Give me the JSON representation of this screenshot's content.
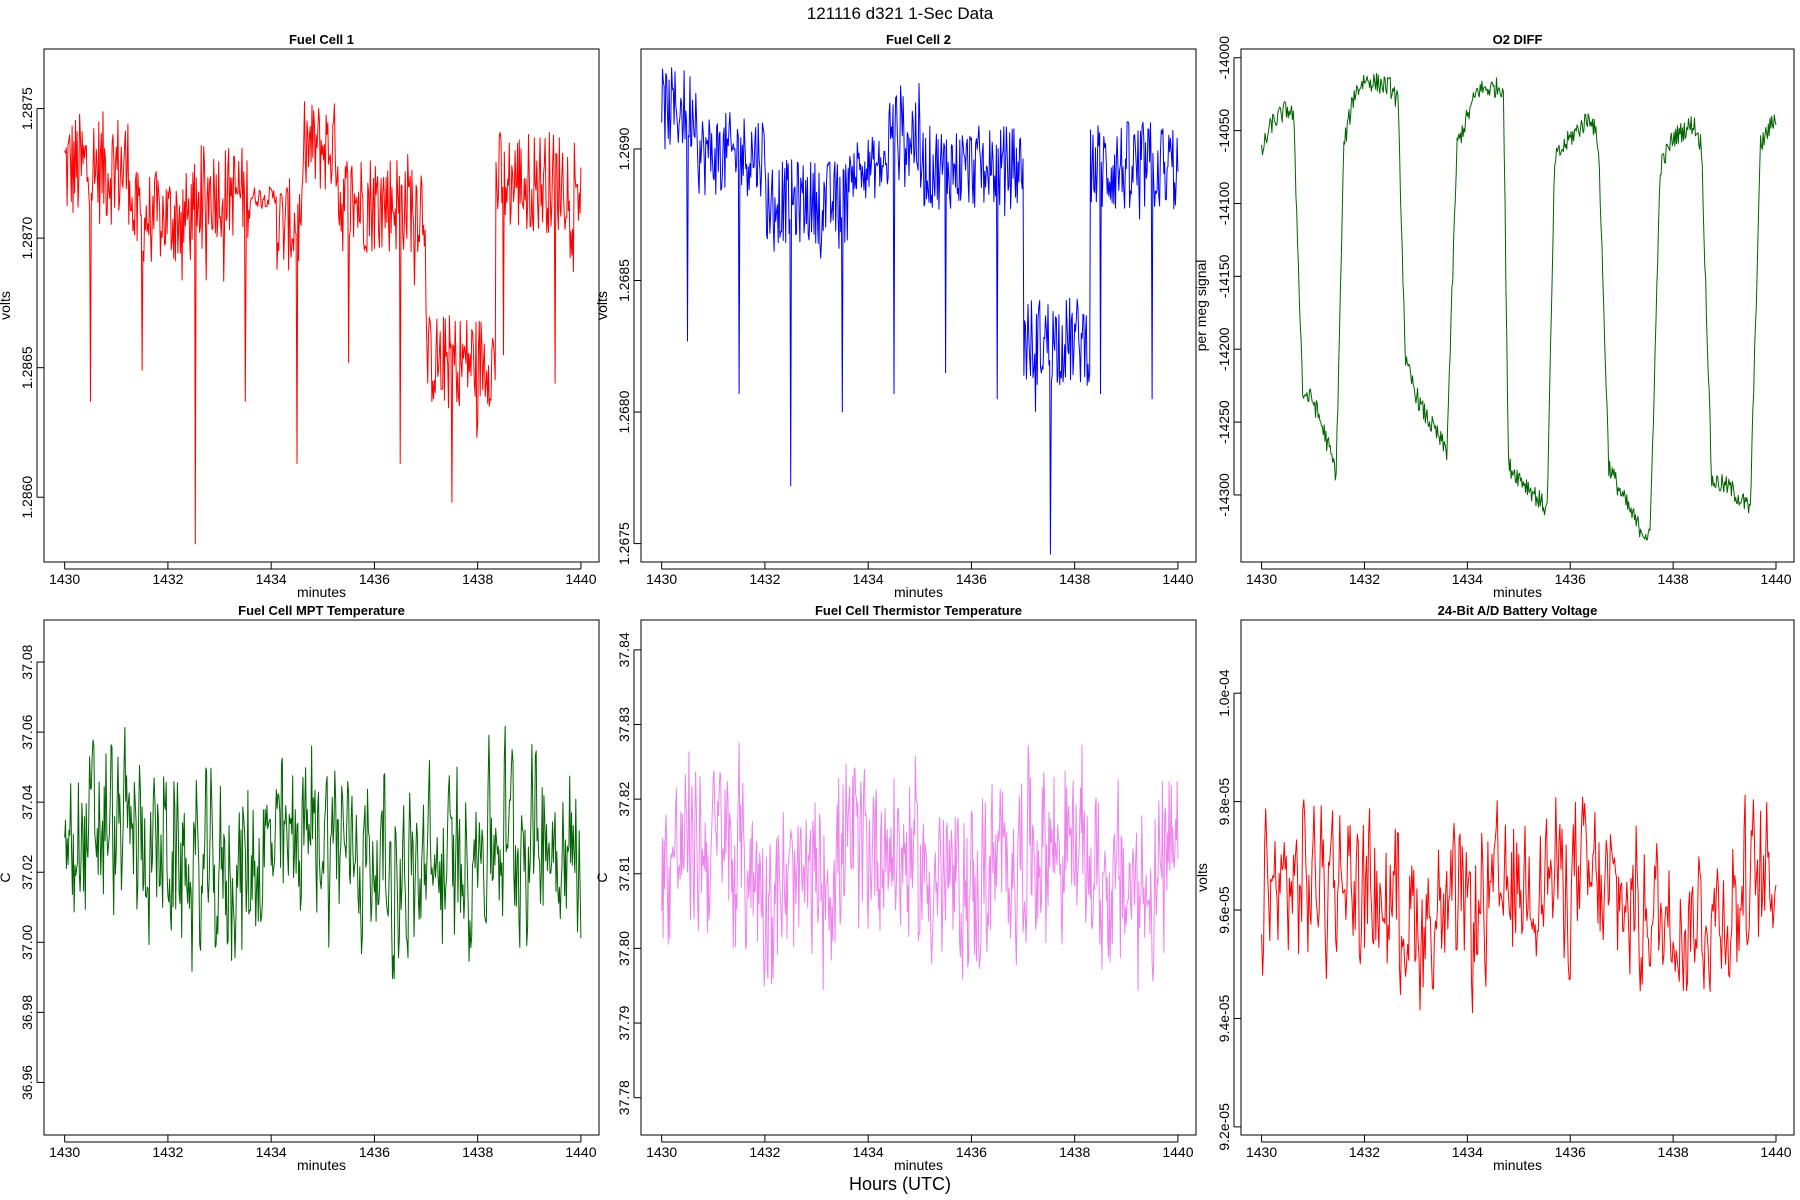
{
  "figure": {
    "suptitle": "121116   d321   1-Sec Data",
    "bottom_label": "Hours (UTC)"
  },
  "chart_data": [
    {
      "type": "line",
      "title": "Fuel Cell 1",
      "xlabel": "minutes",
      "ylabel": "volts",
      "color": "#ff0000",
      "xlim": [
        1429.6,
        1440.35
      ],
      "ylim": [
        1.28575,
        1.28773
      ],
      "xticks": [
        1430,
        1432,
        1434,
        1436,
        1438,
        1440
      ],
      "xtick_labels": [
        "1430",
        "1432",
        "1434",
        "1436",
        "1438",
        "1440"
      ],
      "yticks": [
        1.286,
        1.2865,
        1.287,
        1.2875
      ],
      "ytick_labels": [
        "1.2860",
        "1.2865",
        "1.2870",
        "1.2875"
      ],
      "segments": [
        {
          "x0": 1430.0,
          "x1": 1431.3,
          "level": 1.28727,
          "noise": 0.00022
        },
        {
          "x0": 1431.3,
          "x1": 1432.5,
          "level": 1.28708,
          "noise": 0.00018
        },
        {
          "x0": 1432.5,
          "x1": 1433.6,
          "level": 1.28718,
          "noise": 0.00018
        },
        {
          "x0": 1433.6,
          "x1": 1434.1,
          "level": 1.28716,
          "noise": 4e-05
        },
        {
          "x0": 1434.1,
          "x1": 1434.6,
          "level": 1.28705,
          "noise": 0.00018
        },
        {
          "x0": 1434.6,
          "x1": 1435.3,
          "level": 1.28735,
          "noise": 0.00018
        },
        {
          "x0": 1435.3,
          "x1": 1437.0,
          "level": 1.28714,
          "noise": 0.0002
        },
        {
          "x0": 1437.0,
          "x1": 1438.35,
          "level": 1.28653,
          "noise": 0.00018
        },
        {
          "x0": 1438.35,
          "x1": 1440.0,
          "level": 1.28722,
          "noise": 0.0002
        }
      ],
      "spikes": [
        {
          "x": 1430.5,
          "y": 1.28637
        },
        {
          "x": 1431.5,
          "y": 1.28649
        },
        {
          "x": 1432.53,
          "y": 1.28582
        },
        {
          "x": 1433.5,
          "y": 1.28637
        },
        {
          "x": 1434.5,
          "y": 1.28613
        },
        {
          "x": 1435.5,
          "y": 1.28652
        },
        {
          "x": 1436.5,
          "y": 1.28613
        },
        {
          "x": 1437.5,
          "y": 1.28598
        },
        {
          "x": 1438.5,
          "y": 1.28655
        },
        {
          "x": 1439.5,
          "y": 1.28644
        }
      ]
    },
    {
      "type": "line",
      "title": "Fuel Cell 2",
      "xlabel": "minutes",
      "ylabel": "volts",
      "color": "#0000ff",
      "xlim": [
        1429.6,
        1440.35
      ],
      "ylim": [
        1.26743,
        1.26938
      ],
      "xticks": [
        1430,
        1432,
        1434,
        1436,
        1438,
        1440
      ],
      "xtick_labels": [
        "1430",
        "1432",
        "1434",
        "1436",
        "1438",
        "1440"
      ],
      "yticks": [
        1.2675,
        1.268,
        1.2685,
        1.269
      ],
      "ytick_labels": [
        "1.2675",
        "1.2680",
        "1.2685",
        "1.2690"
      ],
      "segments": [
        {
          "x0": 1430.0,
          "x1": 1430.7,
          "level": 1.26915,
          "noise": 0.00016
        },
        {
          "x0": 1430.7,
          "x1": 1432.0,
          "level": 1.26898,
          "noise": 0.00016
        },
        {
          "x0": 1432.0,
          "x1": 1433.6,
          "level": 1.2688,
          "noise": 0.00016
        },
        {
          "x0": 1433.6,
          "x1": 1434.4,
          "level": 1.26893,
          "noise": 0.00012
        },
        {
          "x0": 1434.4,
          "x1": 1435.0,
          "level": 1.26905,
          "noise": 0.0002
        },
        {
          "x0": 1435.0,
          "x1": 1437.0,
          "level": 1.26893,
          "noise": 0.00016
        },
        {
          "x0": 1437.0,
          "x1": 1438.3,
          "level": 1.26827,
          "noise": 0.00017
        },
        {
          "x0": 1438.3,
          "x1": 1440.0,
          "level": 1.26893,
          "noise": 0.00018
        }
      ],
      "spikes": [
        {
          "x": 1430.5,
          "y": 1.26827
        },
        {
          "x": 1431.5,
          "y": 1.26807
        },
        {
          "x": 1432.5,
          "y": 1.26772
        },
        {
          "x": 1433.5,
          "y": 1.268
        },
        {
          "x": 1434.5,
          "y": 1.26807
        },
        {
          "x": 1435.5,
          "y": 1.26815
        },
        {
          "x": 1436.5,
          "y": 1.26805
        },
        {
          "x": 1437.53,
          "y": 1.26746
        },
        {
          "x": 1438.5,
          "y": 1.26807
        },
        {
          "x": 1439.5,
          "y": 1.26805
        }
      ]
    },
    {
      "type": "line",
      "title": "O2 DIFF",
      "xlabel": "minutes",
      "ylabel": "per meg signal",
      "color": "#006400",
      "xlim": [
        1429.6,
        1440.35
      ],
      "ylim": [
        -14346,
        -13994
      ],
      "xticks": [
        1430,
        1432,
        1434,
        1436,
        1438,
        1440
      ],
      "xtick_labels": [
        "1430",
        "1432",
        "1434",
        "1436",
        "1438",
        "1440"
      ],
      "yticks": [
        -14000,
        -14050,
        -14100,
        -14150,
        -14200,
        -14250,
        -14300
      ],
      "ytick_labels": [
        "-14000",
        "-14050",
        "-14100",
        "-14150",
        "-14200",
        "-14250",
        "-14300"
      ],
      "points": [
        {
          "x": 1430.0,
          "y": -14065
        },
        {
          "x": 1430.2,
          "y": -14045
        },
        {
          "x": 1430.5,
          "y": -14035
        },
        {
          "x": 1430.62,
          "y": -14040
        },
        {
          "x": 1430.8,
          "y": -14230
        },
        {
          "x": 1431.0,
          "y": -14235
        },
        {
          "x": 1431.2,
          "y": -14255
        },
        {
          "x": 1431.45,
          "y": -14285
        },
        {
          "x": 1431.6,
          "y": -14060
        },
        {
          "x": 1431.8,
          "y": -14025
        },
        {
          "x": 1432.0,
          "y": -14015
        },
        {
          "x": 1432.5,
          "y": -14020
        },
        {
          "x": 1432.65,
          "y": -14030
        },
        {
          "x": 1432.8,
          "y": -14210
        },
        {
          "x": 1433.1,
          "y": -14240
        },
        {
          "x": 1433.4,
          "y": -14258
        },
        {
          "x": 1433.6,
          "y": -14270
        },
        {
          "x": 1433.8,
          "y": -14060
        },
        {
          "x": 1434.2,
          "y": -14022
        },
        {
          "x": 1434.7,
          "y": -14020
        },
        {
          "x": 1434.8,
          "y": -14280
        },
        {
          "x": 1435.2,
          "y": -14295
        },
        {
          "x": 1435.55,
          "y": -14310
        },
        {
          "x": 1435.7,
          "y": -14070
        },
        {
          "x": 1436.0,
          "y": -14055
        },
        {
          "x": 1436.4,
          "y": -14040
        },
        {
          "x": 1436.55,
          "y": -14060
        },
        {
          "x": 1436.75,
          "y": -14280
        },
        {
          "x": 1437.0,
          "y": -14300
        },
        {
          "x": 1437.3,
          "y": -14320
        },
        {
          "x": 1437.55,
          "y": -14330
        },
        {
          "x": 1437.75,
          "y": -14075
        },
        {
          "x": 1438.0,
          "y": -14055
        },
        {
          "x": 1438.4,
          "y": -14045
        },
        {
          "x": 1438.55,
          "y": -14060
        },
        {
          "x": 1438.75,
          "y": -14290
        },
        {
          "x": 1439.1,
          "y": -14295
        },
        {
          "x": 1439.5,
          "y": -14310
        },
        {
          "x": 1439.7,
          "y": -14060
        },
        {
          "x": 1440.0,
          "y": -14040
        }
      ],
      "noise": 7
    },
    {
      "type": "line",
      "title": "Fuel Cell MPT Temperature",
      "xlabel": "minutes",
      "ylabel": "C",
      "color": "#006400",
      "xlim": [
        1429.6,
        1440.35
      ],
      "ylim": [
        36.945,
        37.092
      ],
      "xticks": [
        1430,
        1432,
        1434,
        1436,
        1438,
        1440
      ],
      "xtick_labels": [
        "1430",
        "1432",
        "1434",
        "1436",
        "1438",
        "1440"
      ],
      "yticks": [
        36.96,
        36.98,
        37.0,
        37.02,
        37.04,
        37.06,
        37.08
      ],
      "ytick_labels": [
        "36.96",
        "36.98",
        "37.00",
        "37.02",
        "37.04",
        "37.06",
        "37.08"
      ],
      "level": 37.025,
      "noise": 0.046,
      "points_count": 600
    },
    {
      "type": "line",
      "title": "Fuel Cell Thermistor Temperature",
      "xlabel": "minutes",
      "ylabel": "C",
      "color": "#ee82ee",
      "xlim": [
        1429.6,
        1440.35
      ],
      "ylim": [
        37.775,
        37.844
      ],
      "xticks": [
        1430,
        1432,
        1434,
        1436,
        1438,
        1440
      ],
      "xtick_labels": [
        "1430",
        "1432",
        "1434",
        "1436",
        "1438",
        "1440"
      ],
      "yticks": [
        37.78,
        37.79,
        37.8,
        37.81,
        37.82,
        37.83,
        37.84
      ],
      "ytick_labels": [
        "37.78",
        "37.79",
        "37.80",
        "37.81",
        "37.82",
        "37.83",
        "37.84"
      ],
      "level": 37.811,
      "noise": 0.022,
      "points_count": 700
    },
    {
      "type": "line",
      "title": "24-Bit A/D Battery Voltage",
      "xlabel": "minutes",
      "ylabel": "volts",
      "color": "#ff0000",
      "xlim": [
        1429.6,
        1440.35
      ],
      "ylim": [
        9.185e-05,
        0.00010135
      ],
      "xticks": [
        1430,
        1432,
        1434,
        1436,
        1438,
        1440
      ],
      "xtick_labels": [
        "1430",
        "1432",
        "1434",
        "1436",
        "1438",
        "1440"
      ],
      "yticks": [
        9.2e-05,
        9.4e-05,
        9.6e-05,
        9.8e-05,
        0.0001
      ],
      "ytick_labels": [
        "9.2e-05",
        "9.4e-05",
        "9.6e-05",
        "9.8e-05",
        "1.0e-04"
      ],
      "level": 9.62e-05,
      "noise": 2.6e-06,
      "points_count": 500
    }
  ]
}
